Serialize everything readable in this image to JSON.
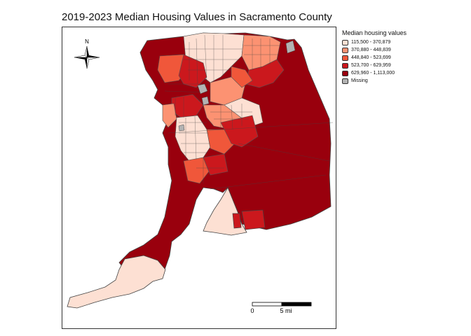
{
  "title": "2019-2023 Median Housing Values in Sacramento County",
  "legend": {
    "title": "Median housing values",
    "items": [
      {
        "label": "115,500 - 370,879",
        "color": "#fde0d3"
      },
      {
        "label": "370,880 - 448,839",
        "color": "#fc9272"
      },
      {
        "label": "448,840 - 523,699",
        "color": "#f0573a"
      },
      {
        "label": "523,700 - 629,959",
        "color": "#cb181d"
      },
      {
        "label": "629,960 - 1,113,000",
        "color": "#99000d"
      },
      {
        "label": "Missing",
        "color": "#b3b3b3"
      }
    ]
  },
  "north_arrow": {
    "label": "N"
  },
  "scale_bar": {
    "start_label": "0",
    "end_label": "5 mi"
  }
}
